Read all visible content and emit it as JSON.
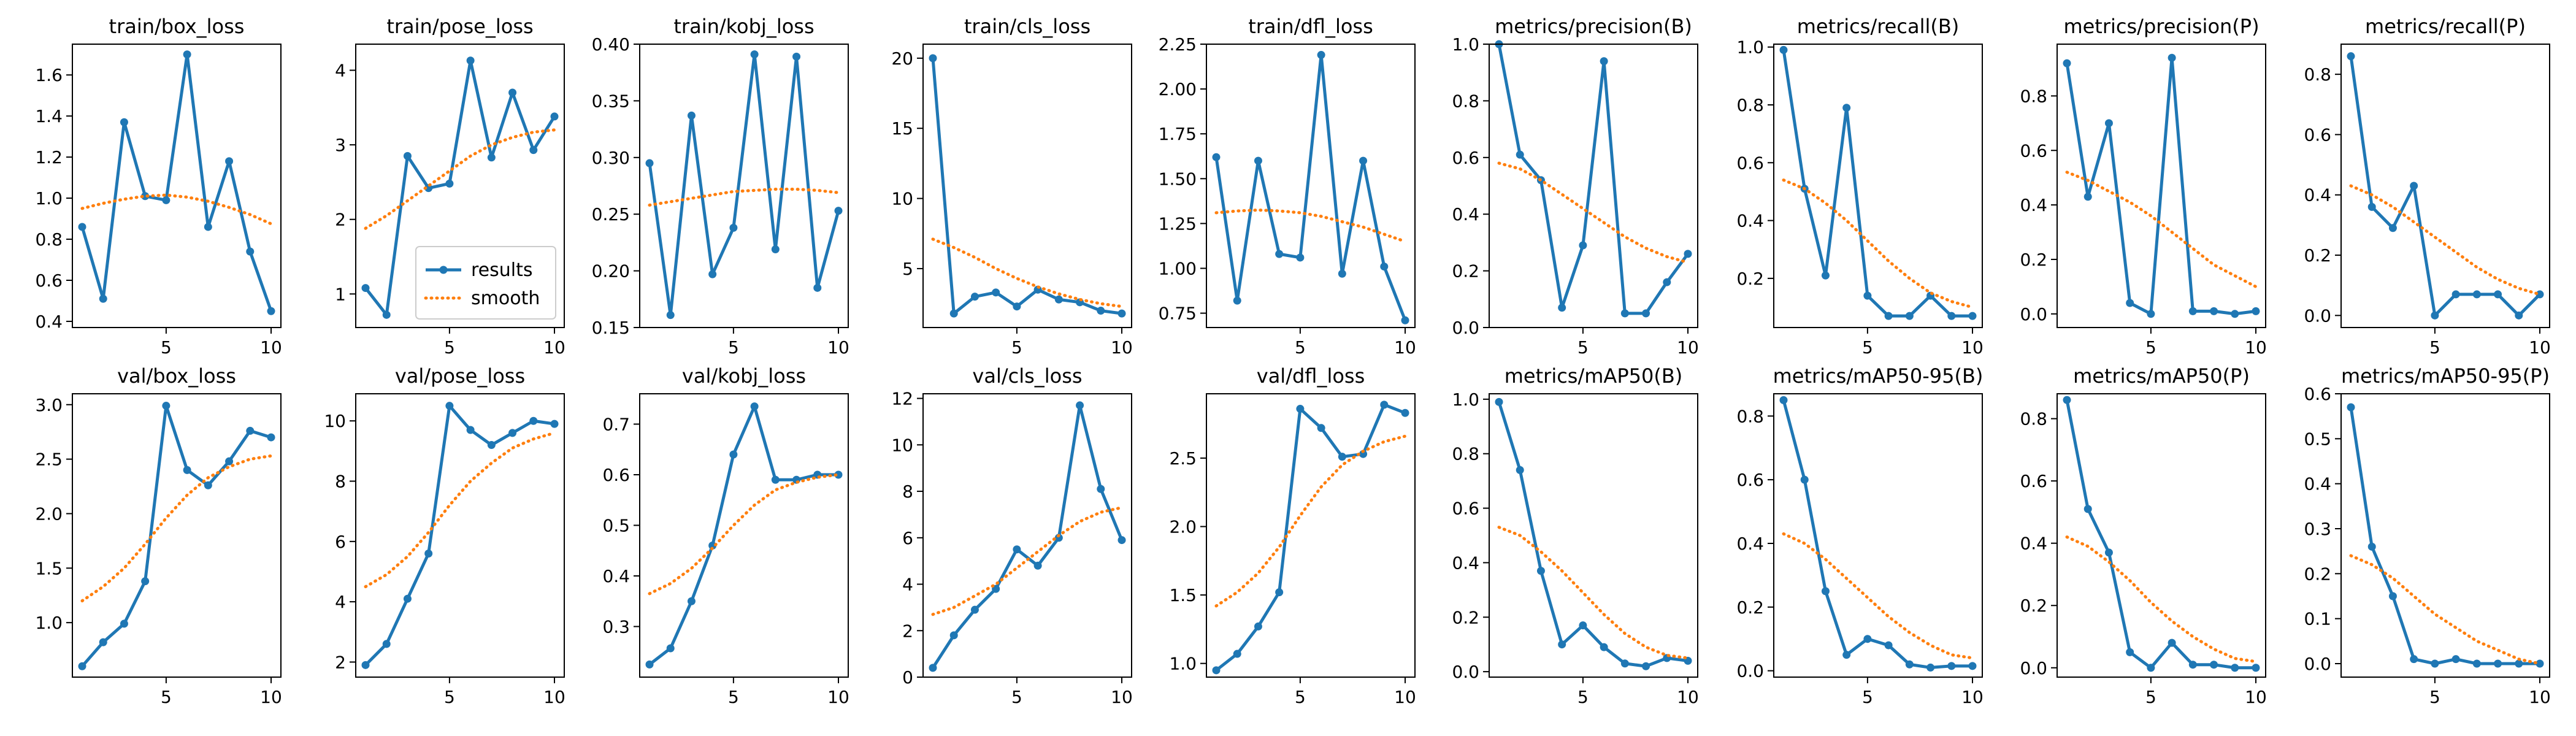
{
  "chart_data": [
    {
      "type": "line",
      "title": "train/box_loss",
      "x": [
        1,
        2,
        3,
        4,
        5,
        6,
        7,
        8,
        9,
        10
      ],
      "ylim": [
        0.37,
        1.75
      ],
      "xticks": [
        5,
        10
      ],
      "yticks": [
        0.4,
        0.6,
        0.8,
        1.0,
        1.2,
        1.4,
        1.6
      ],
      "series": [
        {
          "name": "results",
          "values": [
            0.86,
            0.51,
            1.37,
            1.01,
            0.99,
            1.7,
            0.86,
            1.18,
            0.74,
            0.45
          ]
        },
        {
          "name": "smooth",
          "values": [
            0.95,
            0.975,
            0.995,
            1.01,
            1.015,
            1.005,
            0.985,
            0.955,
            0.92,
            0.875
          ]
        }
      ]
    },
    {
      "type": "line",
      "title": "train/pose_loss",
      "x": [
        1,
        2,
        3,
        4,
        5,
        6,
        7,
        8,
        9,
        10
      ],
      "ylim": [
        0.55,
        4.35
      ],
      "xticks": [
        5,
        10
      ],
      "yticks": [
        1,
        2,
        3,
        4
      ],
      "legend": {
        "position": "lower-right",
        "entries": [
          "results",
          "smooth"
        ]
      },
      "series": [
        {
          "name": "results",
          "values": [
            1.08,
            0.72,
            2.85,
            2.42,
            2.48,
            4.13,
            2.83,
            3.7,
            2.93,
            3.38
          ]
        },
        {
          "name": "smooth",
          "values": [
            1.88,
            2.05,
            2.25,
            2.45,
            2.65,
            2.85,
            3.0,
            3.1,
            3.17,
            3.2
          ]
        }
      ]
    },
    {
      "type": "line",
      "title": "train/kobj_loss",
      "x": [
        1,
        2,
        3,
        4,
        5,
        6,
        7,
        8,
        9,
        10
      ],
      "ylim": [
        0.15,
        0.4
      ],
      "xticks": [
        5,
        10
      ],
      "yticks": [
        0.15,
        0.2,
        0.25,
        0.3,
        0.35,
        0.4
      ],
      "series": [
        {
          "name": "results",
          "values": [
            0.295,
            0.161,
            0.337,
            0.197,
            0.238,
            0.391,
            0.219,
            0.389,
            0.185,
            0.253
          ]
        },
        {
          "name": "smooth",
          "values": [
            0.258,
            0.261,
            0.264,
            0.267,
            0.27,
            0.271,
            0.272,
            0.272,
            0.271,
            0.269
          ]
        }
      ]
    },
    {
      "type": "line",
      "title": "train/cls_loss",
      "x": [
        1,
        2,
        3,
        4,
        5,
        6,
        7,
        8,
        9,
        10
      ],
      "ylim": [
        0.8,
        21
      ],
      "xticks": [
        5,
        10
      ],
      "yticks": [
        5,
        10,
        15,
        20
      ],
      "series": [
        {
          "name": "results",
          "values": [
            20.0,
            1.8,
            3.0,
            3.3,
            2.3,
            3.5,
            2.8,
            2.6,
            2.0,
            1.8
          ]
        },
        {
          "name": "smooth",
          "values": [
            7.1,
            6.5,
            5.8,
            5.0,
            4.3,
            3.7,
            3.2,
            2.8,
            2.5,
            2.3
          ]
        }
      ]
    },
    {
      "type": "line",
      "title": "train/dfl_loss",
      "x": [
        1,
        2,
        3,
        4,
        5,
        6,
        7,
        8,
        9,
        10
      ],
      "ylim": [
        0.67,
        2.25
      ],
      "xticks": [
        5,
        10
      ],
      "yticks": [
        0.75,
        1.0,
        1.25,
        1.5,
        1.75,
        2.0,
        2.25
      ],
      "series": [
        {
          "name": "results",
          "values": [
            1.62,
            0.82,
            1.6,
            1.08,
            1.06,
            2.19,
            0.97,
            1.6,
            1.01,
            0.71
          ]
        },
        {
          "name": "smooth",
          "values": [
            1.31,
            1.32,
            1.325,
            1.32,
            1.31,
            1.29,
            1.26,
            1.23,
            1.19,
            1.15
          ]
        }
      ]
    },
    {
      "type": "line",
      "title": "metrics/precision(B)",
      "x": [
        1,
        2,
        3,
        4,
        5,
        6,
        7,
        8,
        9,
        10
      ],
      "ylim": [
        0.0,
        1.0
      ],
      "xticks": [
        5,
        10
      ],
      "yticks": [
        0.0,
        0.2,
        0.4,
        0.6,
        0.8,
        1.0
      ],
      "series": [
        {
          "name": "results",
          "values": [
            1.0,
            0.61,
            0.52,
            0.07,
            0.29,
            0.94,
            0.05,
            0.05,
            0.16,
            0.26
          ]
        },
        {
          "name": "smooth",
          "values": [
            0.58,
            0.56,
            0.52,
            0.47,
            0.42,
            0.37,
            0.32,
            0.28,
            0.25,
            0.23
          ]
        }
      ]
    },
    {
      "type": "line",
      "title": "metrics/recall(B)",
      "x": [
        1,
        2,
        3,
        4,
        5,
        6,
        7,
        8,
        9,
        10
      ],
      "ylim": [
        0.03,
        1.01
      ],
      "xticks": [
        5,
        10
      ],
      "yticks": [
        0.2,
        0.4,
        0.6,
        0.8,
        1.0
      ],
      "series": [
        {
          "name": "results",
          "values": [
            0.99,
            0.51,
            0.21,
            0.79,
            0.14,
            0.07,
            0.07,
            0.14,
            0.07,
            0.07
          ]
        },
        {
          "name": "smooth",
          "values": [
            0.54,
            0.51,
            0.46,
            0.4,
            0.33,
            0.26,
            0.2,
            0.15,
            0.12,
            0.1
          ]
        }
      ]
    },
    {
      "type": "line",
      "title": "metrics/precision(P)",
      "x": [
        1,
        2,
        3,
        4,
        5,
        6,
        7,
        8,
        9,
        10
      ],
      "ylim": [
        -0.05,
        0.99
      ],
      "xticks": [
        5,
        10
      ],
      "yticks": [
        0.0,
        0.2,
        0.4,
        0.6,
        0.8
      ],
      "series": [
        {
          "name": "results",
          "values": [
            0.92,
            0.43,
            0.7,
            0.04,
            0.0,
            0.94,
            0.01,
            0.01,
            0.0,
            0.01
          ]
        },
        {
          "name": "smooth",
          "values": [
            0.52,
            0.49,
            0.45,
            0.41,
            0.36,
            0.3,
            0.24,
            0.18,
            0.14,
            0.1
          ]
        }
      ]
    },
    {
      "type": "line",
      "title": "metrics/recall(P)",
      "x": [
        1,
        2,
        3,
        4,
        5,
        6,
        7,
        8,
        9,
        10
      ],
      "ylim": [
        -0.04,
        0.9
      ],
      "xticks": [
        5,
        10
      ],
      "yticks": [
        0.0,
        0.2,
        0.4,
        0.6,
        0.8
      ],
      "series": [
        {
          "name": "results",
          "values": [
            0.86,
            0.36,
            0.29,
            0.43,
            0.0,
            0.07,
            0.07,
            0.07,
            0.0,
            0.07
          ]
        },
        {
          "name": "smooth",
          "values": [
            0.43,
            0.4,
            0.36,
            0.31,
            0.26,
            0.21,
            0.16,
            0.12,
            0.09,
            0.07
          ]
        }
      ]
    },
    {
      "type": "line",
      "title": "val/box_loss",
      "x": [
        1,
        2,
        3,
        4,
        5,
        6,
        7,
        8,
        9,
        10
      ],
      "ylim": [
        0.5,
        3.1
      ],
      "xticks": [
        5,
        10
      ],
      "yticks": [
        1.0,
        1.5,
        2.0,
        2.5,
        3.0
      ],
      "series": [
        {
          "name": "results",
          "values": [
            0.6,
            0.82,
            0.99,
            1.38,
            2.99,
            2.4,
            2.26,
            2.48,
            2.76,
            2.7
          ]
        },
        {
          "name": "smooth",
          "values": [
            1.2,
            1.33,
            1.5,
            1.72,
            1.96,
            2.17,
            2.33,
            2.43,
            2.5,
            2.53
          ]
        }
      ]
    },
    {
      "type": "line",
      "title": "val/pose_loss",
      "x": [
        1,
        2,
        3,
        4,
        5,
        6,
        7,
        8,
        9,
        10
      ],
      "ylim": [
        1.5,
        10.9
      ],
      "xticks": [
        5,
        10
      ],
      "yticks": [
        2,
        4,
        6,
        8,
        10
      ],
      "series": [
        {
          "name": "results",
          "values": [
            1.9,
            2.6,
            4.1,
            5.6,
            10.5,
            9.7,
            9.2,
            9.6,
            10.0,
            9.9
          ]
        },
        {
          "name": "smooth",
          "values": [
            4.5,
            4.9,
            5.5,
            6.3,
            7.2,
            8.0,
            8.6,
            9.1,
            9.4,
            9.6
          ]
        }
      ]
    },
    {
      "type": "line",
      "title": "val/kobj_loss",
      "x": [
        1,
        2,
        3,
        4,
        5,
        6,
        7,
        8,
        9,
        10
      ],
      "ylim": [
        0.2,
        0.76
      ],
      "xticks": [
        5,
        10
      ],
      "yticks": [
        0.3,
        0.4,
        0.5,
        0.6,
        0.7
      ],
      "series": [
        {
          "name": "results",
          "values": [
            0.225,
            0.257,
            0.35,
            0.46,
            0.64,
            0.735,
            0.59,
            0.59,
            0.6,
            0.6
          ]
        },
        {
          "name": "smooth",
          "values": [
            0.365,
            0.385,
            0.415,
            0.455,
            0.5,
            0.54,
            0.57,
            0.585,
            0.595,
            0.6
          ]
        }
      ]
    },
    {
      "type": "line",
      "title": "val/cls_loss",
      "x": [
        1,
        2,
        3,
        4,
        5,
        6,
        7,
        8,
        9,
        10
      ],
      "ylim": [
        0.0,
        12.2
      ],
      "xticks": [
        5,
        10
      ],
      "yticks": [
        0,
        2,
        4,
        6,
        8,
        10,
        12
      ],
      "series": [
        {
          "name": "results",
          "values": [
            0.4,
            1.8,
            2.9,
            3.8,
            5.5,
            4.8,
            6.0,
            11.7,
            8.1,
            5.9
          ]
        },
        {
          "name": "smooth",
          "values": [
            2.7,
            3.0,
            3.5,
            4.0,
            4.7,
            5.4,
            6.1,
            6.7,
            7.1,
            7.3
          ]
        }
      ]
    },
    {
      "type": "line",
      "title": "val/dfl_loss",
      "x": [
        1,
        2,
        3,
        4,
        5,
        6,
        7,
        8,
        9,
        10
      ],
      "ylim": [
        0.9,
        2.97
      ],
      "xticks": [
        5,
        10
      ],
      "yticks": [
        1.0,
        1.5,
        2.0,
        2.5
      ],
      "series": [
        {
          "name": "results",
          "values": [
            0.95,
            1.07,
            1.27,
            1.52,
            2.86,
            2.72,
            2.51,
            2.53,
            2.89,
            2.83
          ]
        },
        {
          "name": "smooth",
          "values": [
            1.42,
            1.52,
            1.66,
            1.85,
            2.08,
            2.29,
            2.45,
            2.55,
            2.62,
            2.66
          ]
        }
      ]
    },
    {
      "type": "line",
      "title": "metrics/mAP50(B)",
      "x": [
        1,
        2,
        3,
        4,
        5,
        6,
        7,
        8,
        9,
        10
      ],
      "ylim": [
        -0.02,
        1.02
      ],
      "xticks": [
        5,
        10
      ],
      "yticks": [
        0.0,
        0.2,
        0.4,
        0.6,
        0.8,
        1.0
      ],
      "series": [
        {
          "name": "results",
          "values": [
            0.99,
            0.74,
            0.37,
            0.1,
            0.17,
            0.09,
            0.03,
            0.02,
            0.05,
            0.04
          ]
        },
        {
          "name": "smooth",
          "values": [
            0.53,
            0.5,
            0.44,
            0.37,
            0.29,
            0.21,
            0.14,
            0.09,
            0.06,
            0.05
          ]
        }
      ]
    },
    {
      "type": "line",
      "title": "metrics/mAP50-95(B)",
      "x": [
        1,
        2,
        3,
        4,
        5,
        6,
        7,
        8,
        9,
        10
      ],
      "ylim": [
        -0.02,
        0.87
      ],
      "xticks": [
        5,
        10
      ],
      "yticks": [
        0.0,
        0.2,
        0.4,
        0.6,
        0.8
      ],
      "series": [
        {
          "name": "results",
          "values": [
            0.85,
            0.6,
            0.25,
            0.05,
            0.1,
            0.08,
            0.02,
            0.01,
            0.015,
            0.015
          ]
        },
        {
          "name": "smooth",
          "values": [
            0.43,
            0.4,
            0.35,
            0.29,
            0.23,
            0.17,
            0.12,
            0.08,
            0.05,
            0.04
          ]
        }
      ]
    },
    {
      "type": "line",
      "title": "metrics/mAP50(P)",
      "x": [
        1,
        2,
        3,
        4,
        5,
        6,
        7,
        8,
        9,
        10
      ],
      "ylim": [
        -0.03,
        0.88
      ],
      "xticks": [
        5,
        10
      ],
      "yticks": [
        0.0,
        0.2,
        0.4,
        0.6,
        0.8
      ],
      "series": [
        {
          "name": "results",
          "values": [
            0.86,
            0.51,
            0.37,
            0.05,
            0.0,
            0.08,
            0.01,
            0.01,
            0.0,
            0.0
          ]
        },
        {
          "name": "smooth",
          "values": [
            0.42,
            0.39,
            0.34,
            0.28,
            0.21,
            0.15,
            0.1,
            0.06,
            0.03,
            0.02
          ]
        }
      ]
    },
    {
      "type": "line",
      "title": "metrics/mAP50-95(P)",
      "x": [
        1,
        2,
        3,
        4,
        5,
        6,
        7,
        8,
        9,
        10
      ],
      "ylim": [
        -0.03,
        0.6
      ],
      "xticks": [
        5,
        10
      ],
      "yticks": [
        0.0,
        0.1,
        0.2,
        0.3,
        0.4,
        0.5,
        0.6
      ],
      "series": [
        {
          "name": "results",
          "values": [
            0.57,
            0.26,
            0.15,
            0.01,
            0.0,
            0.01,
            0.0,
            0.0,
            0.0,
            0.0
          ]
        },
        {
          "name": "smooth",
          "values": [
            0.24,
            0.22,
            0.19,
            0.15,
            0.11,
            0.08,
            0.05,
            0.03,
            0.01,
            0.0
          ]
        }
      ]
    }
  ],
  "colors": {
    "results": "#1f77b4",
    "smooth": "#ff7f0e"
  }
}
